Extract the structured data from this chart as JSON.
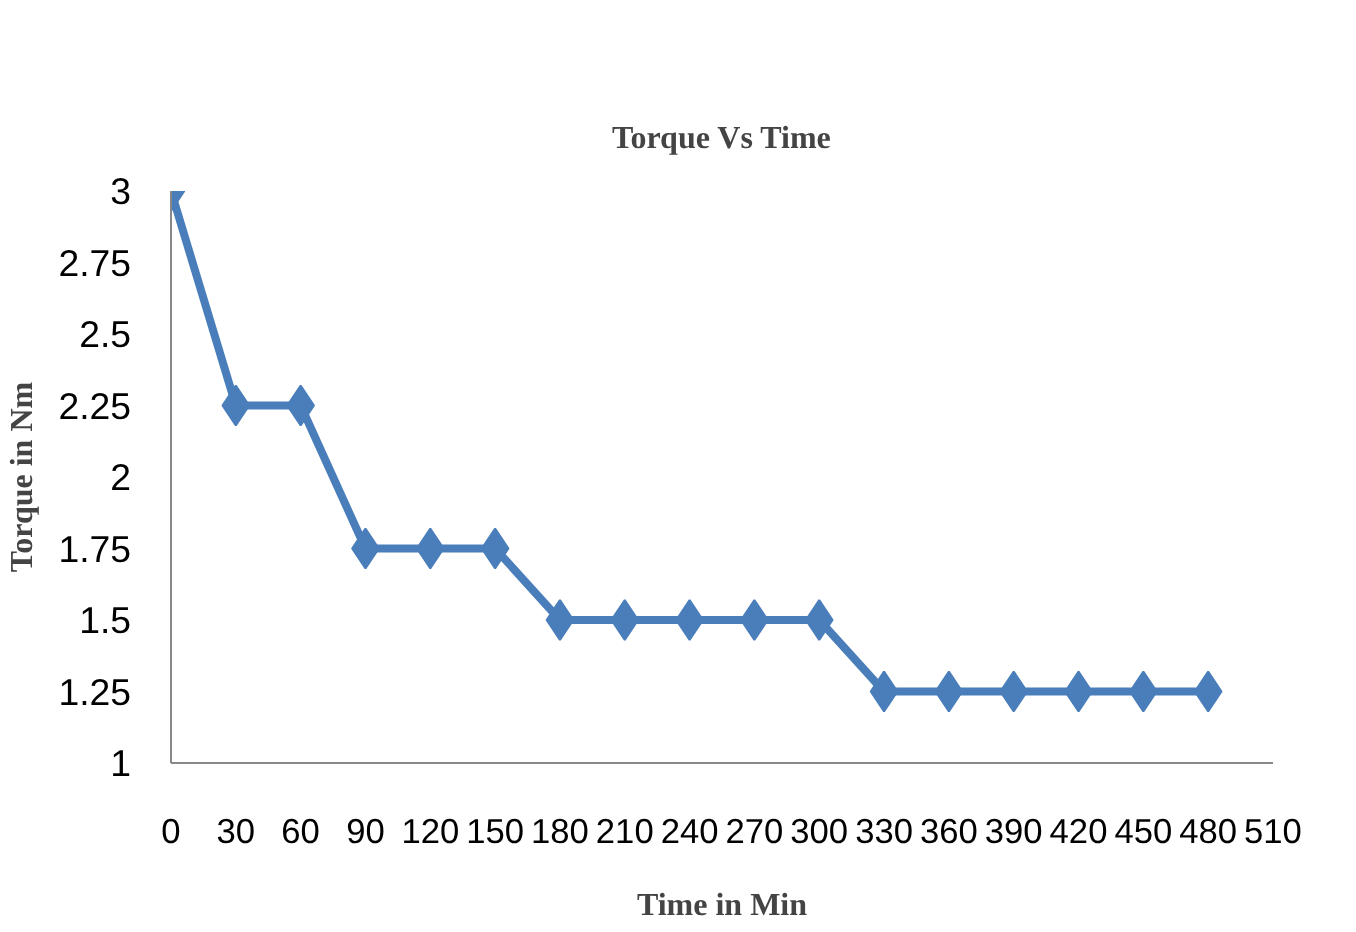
{
  "chart_data": {
    "type": "line",
    "title": "Torque Vs Time",
    "xlabel": "Time in Min",
    "ylabel": "Torque in Nm",
    "x": [
      0,
      30,
      60,
      90,
      120,
      150,
      180,
      210,
      240,
      270,
      300,
      330,
      360,
      390,
      420,
      450,
      480
    ],
    "series": [
      {
        "color": "#4a7ebb",
        "values": [
          3,
          2.25,
          2.25,
          1.75,
          1.75,
          1.75,
          1.5,
          1.5,
          1.5,
          1.5,
          1.5,
          1.25,
          1.25,
          1.25,
          1.25,
          1.25,
          1.25
        ]
      }
    ],
    "xlim": [
      0,
      510
    ],
    "xticks": [
      0,
      30,
      60,
      90,
      120,
      150,
      180,
      210,
      240,
      270,
      300,
      330,
      360,
      390,
      420,
      450,
      480,
      510
    ],
    "ylim": [
      1,
      3
    ],
    "yticks": [
      1,
      1.25,
      1.5,
      1.75,
      2,
      2.25,
      2.5,
      2.75,
      3
    ],
    "grid": false,
    "marker": "diamond",
    "line_style": "solid"
  }
}
